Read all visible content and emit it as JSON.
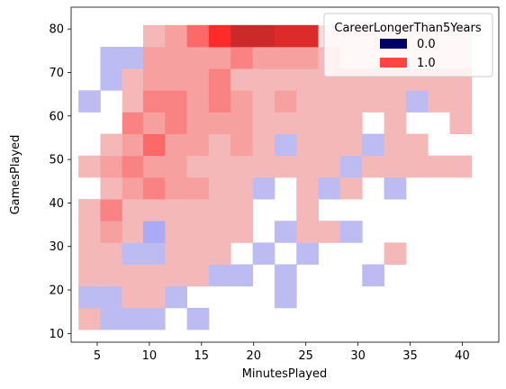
{
  "chart_data": {
    "type": "heatmap",
    "xlabel": "MinutesPlayed",
    "ylabel": "GamesPlayed",
    "xlim": [
      2.5,
      43.5
    ],
    "ylim": [
      8,
      85
    ],
    "xticks": [
      5,
      10,
      15,
      20,
      25,
      30,
      35,
      40
    ],
    "yticks": [
      10,
      20,
      30,
      40,
      50,
      60,
      70,
      80
    ],
    "legend": {
      "title": "CareerLongerThan5Years",
      "placement": "top-right",
      "entries": [
        {
          "label": "0.0",
          "color": "#000066"
        },
        {
          "label": "1.0",
          "color": "#ff4444"
        }
      ]
    },
    "bin_edges_x": [
      3.2,
      5.3,
      7.4,
      9.4,
      11.5,
      13.6,
      15.7,
      17.8,
      19.9,
      22.0,
      24.1,
      26.2,
      28.3,
      30.4,
      32.5,
      34.6,
      36.7,
      38.8,
      40.9
    ],
    "bin_edges_y": [
      10.9,
      15.9,
      20.9,
      25.9,
      30.9,
      35.9,
      40.9,
      45.9,
      50.9,
      55.9,
      60.9,
      65.9,
      70.9,
      75.9,
      80.9,
      85.0
    ],
    "colors": {
      "lightpink": "#f4b8b8",
      "pink": "#f6a0a0",
      "salmon": "#f98282",
      "red": "#fd6868",
      "brightred": "#ff2a2a",
      "darkred": "#cc2a2a",
      "crimson": "#dd2a2a",
      "lavender": "#bcbcf2",
      "blue": "#aaaaf6",
      "pale": "#fbdcdc"
    },
    "cells": [
      {
        "x": 0,
        "y": 0,
        "c": "lightpink"
      },
      {
        "x": 1,
        "y": 0,
        "c": "lavender"
      },
      {
        "x": 2,
        "y": 0,
        "c": "lavender"
      },
      {
        "x": 3,
        "y": 0,
        "c": "lavender"
      },
      {
        "x": 5,
        "y": 0,
        "c": "lavender"
      },
      {
        "x": 0,
        "y": 1,
        "c": "lavender"
      },
      {
        "x": 1,
        "y": 1,
        "c": "lavender"
      },
      {
        "x": 2,
        "y": 1,
        "c": "lightpink"
      },
      {
        "x": 3,
        "y": 1,
        "c": "lightpink"
      },
      {
        "x": 4,
        "y": 1,
        "c": "lavender"
      },
      {
        "x": 9,
        "y": 1,
        "c": "lavender"
      },
      {
        "x": 0,
        "y": 2,
        "c": "lightpink"
      },
      {
        "x": 1,
        "y": 2,
        "c": "lightpink"
      },
      {
        "x": 2,
        "y": 2,
        "c": "lightpink"
      },
      {
        "x": 3,
        "y": 2,
        "c": "lightpink"
      },
      {
        "x": 4,
        "y": 2,
        "c": "lightpink"
      },
      {
        "x": 5,
        "y": 2,
        "c": "lightpink"
      },
      {
        "x": 6,
        "y": 2,
        "c": "lavender"
      },
      {
        "x": 7,
        "y": 2,
        "c": "lavender"
      },
      {
        "x": 9,
        "y": 2,
        "c": "lavender"
      },
      {
        "x": 13,
        "y": 2,
        "c": "lavender"
      },
      {
        "x": 0,
        "y": 3,
        "c": "lightpink"
      },
      {
        "x": 1,
        "y": 3,
        "c": "lightpink"
      },
      {
        "x": 2,
        "y": 3,
        "c": "lavender"
      },
      {
        "x": 3,
        "y": 3,
        "c": "lavender"
      },
      {
        "x": 4,
        "y": 3,
        "c": "lightpink"
      },
      {
        "x": 5,
        "y": 3,
        "c": "lightpink"
      },
      {
        "x": 6,
        "y": 3,
        "c": "lightpink"
      },
      {
        "x": 8,
        "y": 3,
        "c": "lavender"
      },
      {
        "x": 10,
        "y": 3,
        "c": "lavender"
      },
      {
        "x": 14,
        "y": 3,
        "c": "lightpink"
      },
      {
        "x": 0,
        "y": 4,
        "c": "lightpink"
      },
      {
        "x": 1,
        "y": 4,
        "c": "pink"
      },
      {
        "x": 2,
        "y": 4,
        "c": "lightpink"
      },
      {
        "x": 3,
        "y": 4,
        "c": "blue"
      },
      {
        "x": 4,
        "y": 4,
        "c": "lightpink"
      },
      {
        "x": 5,
        "y": 4,
        "c": "lightpink"
      },
      {
        "x": 6,
        "y": 4,
        "c": "lightpink"
      },
      {
        "x": 7,
        "y": 4,
        "c": "lightpink"
      },
      {
        "x": 9,
        "y": 4,
        "c": "lavender"
      },
      {
        "x": 10,
        "y": 4,
        "c": "lightpink"
      },
      {
        "x": 11,
        "y": 4,
        "c": "lightpink"
      },
      {
        "x": 12,
        "y": 4,
        "c": "lavender"
      },
      {
        "x": 0,
        "y": 5,
        "c": "lightpink"
      },
      {
        "x": 1,
        "y": 5,
        "c": "salmon"
      },
      {
        "x": 2,
        "y": 5,
        "c": "lightpink"
      },
      {
        "x": 3,
        "y": 5,
        "c": "lightpink"
      },
      {
        "x": 4,
        "y": 5,
        "c": "lightpink"
      },
      {
        "x": 5,
        "y": 5,
        "c": "lightpink"
      },
      {
        "x": 6,
        "y": 5,
        "c": "lightpink"
      },
      {
        "x": 7,
        "y": 5,
        "c": "lightpink"
      },
      {
        "x": 10,
        "y": 5,
        "c": "lightpink"
      },
      {
        "x": 1,
        "y": 6,
        "c": "lightpink"
      },
      {
        "x": 2,
        "y": 6,
        "c": "pink"
      },
      {
        "x": 3,
        "y": 6,
        "c": "salmon"
      },
      {
        "x": 4,
        "y": 6,
        "c": "pink"
      },
      {
        "x": 5,
        "y": 6,
        "c": "pink"
      },
      {
        "x": 6,
        "y": 6,
        "c": "lightpink"
      },
      {
        "x": 7,
        "y": 6,
        "c": "lightpink"
      },
      {
        "x": 8,
        "y": 6,
        "c": "lavender"
      },
      {
        "x": 10,
        "y": 6,
        "c": "lightpink"
      },
      {
        "x": 11,
        "y": 6,
        "c": "lavender"
      },
      {
        "x": 12,
        "y": 6,
        "c": "lightpink"
      },
      {
        "x": 14,
        "y": 6,
        "c": "lavender"
      },
      {
        "x": 0,
        "y": 7,
        "c": "lightpink"
      },
      {
        "x": 1,
        "y": 7,
        "c": "pink"
      },
      {
        "x": 2,
        "y": 7,
        "c": "salmon"
      },
      {
        "x": 3,
        "y": 7,
        "c": "pink"
      },
      {
        "x": 4,
        "y": 7,
        "c": "pink"
      },
      {
        "x": 5,
        "y": 7,
        "c": "lightpink"
      },
      {
        "x": 6,
        "y": 7,
        "c": "lightpink"
      },
      {
        "x": 7,
        "y": 7,
        "c": "lightpink"
      },
      {
        "x": 8,
        "y": 7,
        "c": "lightpink"
      },
      {
        "x": 9,
        "y": 7,
        "c": "lightpink"
      },
      {
        "x": 10,
        "y": 7,
        "c": "lightpink"
      },
      {
        "x": 11,
        "y": 7,
        "c": "lightpink"
      },
      {
        "x": 12,
        "y": 7,
        "c": "lavender"
      },
      {
        "x": 13,
        "y": 7,
        "c": "lightpink"
      },
      {
        "x": 14,
        "y": 7,
        "c": "lightpink"
      },
      {
        "x": 15,
        "y": 7,
        "c": "lightpink"
      },
      {
        "x": 16,
        "y": 7,
        "c": "lightpink"
      },
      {
        "x": 17,
        "y": 7,
        "c": "lightpink"
      },
      {
        "x": 1,
        "y": 8,
        "c": "lightpink"
      },
      {
        "x": 2,
        "y": 8,
        "c": "pink"
      },
      {
        "x": 3,
        "y": 8,
        "c": "red"
      },
      {
        "x": 4,
        "y": 8,
        "c": "pink"
      },
      {
        "x": 5,
        "y": 8,
        "c": "pink"
      },
      {
        "x": 6,
        "y": 8,
        "c": "lightpink"
      },
      {
        "x": 7,
        "y": 8,
        "c": "pink"
      },
      {
        "x": 8,
        "y": 8,
        "c": "lightpink"
      },
      {
        "x": 9,
        "y": 8,
        "c": "lavender"
      },
      {
        "x": 10,
        "y": 8,
        "c": "lightpink"
      },
      {
        "x": 11,
        "y": 8,
        "c": "lightpink"
      },
      {
        "x": 12,
        "y": 8,
        "c": "lightpink"
      },
      {
        "x": 13,
        "y": 8,
        "c": "lavender"
      },
      {
        "x": 14,
        "y": 8,
        "c": "lightpink"
      },
      {
        "x": 15,
        "y": 8,
        "c": "lightpink"
      },
      {
        "x": 2,
        "y": 9,
        "c": "salmon"
      },
      {
        "x": 3,
        "y": 9,
        "c": "pink"
      },
      {
        "x": 4,
        "y": 9,
        "c": "salmon"
      },
      {
        "x": 5,
        "y": 9,
        "c": "pink"
      },
      {
        "x": 6,
        "y": 9,
        "c": "pink"
      },
      {
        "x": 7,
        "y": 9,
        "c": "pink"
      },
      {
        "x": 8,
        "y": 9,
        "c": "lightpink"
      },
      {
        "x": 9,
        "y": 9,
        "c": "lightpink"
      },
      {
        "x": 10,
        "y": 9,
        "c": "lightpink"
      },
      {
        "x": 11,
        "y": 9,
        "c": "lightpink"
      },
      {
        "x": 12,
        "y": 9,
        "c": "lightpink"
      },
      {
        "x": 14,
        "y": 9,
        "c": "lightpink"
      },
      {
        "x": 17,
        "y": 9,
        "c": "lightpink"
      },
      {
        "x": 0,
        "y": 10,
        "c": "lavender"
      },
      {
        "x": 2,
        "y": 10,
        "c": "lightpink"
      },
      {
        "x": 3,
        "y": 10,
        "c": "salmon"
      },
      {
        "x": 4,
        "y": 10,
        "c": "salmon"
      },
      {
        "x": 5,
        "y": 10,
        "c": "pink"
      },
      {
        "x": 6,
        "y": 10,
        "c": "salmon"
      },
      {
        "x": 7,
        "y": 10,
        "c": "pink"
      },
      {
        "x": 8,
        "y": 10,
        "c": "lightpink"
      },
      {
        "x": 9,
        "y": 10,
        "c": "pink"
      },
      {
        "x": 10,
        "y": 10,
        "c": "lightpink"
      },
      {
        "x": 11,
        "y": 10,
        "c": "lightpink"
      },
      {
        "x": 12,
        "y": 10,
        "c": "lightpink"
      },
      {
        "x": 13,
        "y": 10,
        "c": "lightpink"
      },
      {
        "x": 14,
        "y": 10,
        "c": "lightpink"
      },
      {
        "x": 15,
        "y": 10,
        "c": "lavender"
      },
      {
        "x": 16,
        "y": 10,
        "c": "lightpink"
      },
      {
        "x": 17,
        "y": 10,
        "c": "lightpink"
      },
      {
        "x": 1,
        "y": 11,
        "c": "lavender"
      },
      {
        "x": 2,
        "y": 11,
        "c": "lightpink"
      },
      {
        "x": 3,
        "y": 11,
        "c": "pink"
      },
      {
        "x": 4,
        "y": 11,
        "c": "pink"
      },
      {
        "x": 5,
        "y": 11,
        "c": "pink"
      },
      {
        "x": 6,
        "y": 11,
        "c": "salmon"
      },
      {
        "x": 7,
        "y": 11,
        "c": "lightpink"
      },
      {
        "x": 8,
        "y": 11,
        "c": "lightpink"
      },
      {
        "x": 9,
        "y": 11,
        "c": "lightpink"
      },
      {
        "x": 10,
        "y": 11,
        "c": "lightpink"
      },
      {
        "x": 11,
        "y": 11,
        "c": "lightpink"
      },
      {
        "x": 12,
        "y": 11,
        "c": "lightpink"
      },
      {
        "x": 13,
        "y": 11,
        "c": "lightpink"
      },
      {
        "x": 14,
        "y": 11,
        "c": "lightpink"
      },
      {
        "x": 15,
        "y": 11,
        "c": "lightpink"
      },
      {
        "x": 16,
        "y": 11,
        "c": "lightpink"
      },
      {
        "x": 17,
        "y": 11,
        "c": "lightpink"
      },
      {
        "x": 18,
        "y": 11,
        "c": "lightpink"
      },
      {
        "x": 1,
        "y": 12,
        "c": "lavender"
      },
      {
        "x": 2,
        "y": 12,
        "c": "lavender"
      },
      {
        "x": 3,
        "y": 12,
        "c": "pink"
      },
      {
        "x": 4,
        "y": 12,
        "c": "pink"
      },
      {
        "x": 5,
        "y": 12,
        "c": "pink"
      },
      {
        "x": 6,
        "y": 12,
        "c": "pink"
      },
      {
        "x": 7,
        "y": 12,
        "c": "salmon"
      },
      {
        "x": 8,
        "y": 12,
        "c": "pink"
      },
      {
        "x": 9,
        "y": 12,
        "c": "pink"
      },
      {
        "x": 10,
        "y": 12,
        "c": "pink"
      },
      {
        "x": 11,
        "y": 12,
        "c": "lightpink"
      },
      {
        "x": 12,
        "y": 12,
        "c": "pale"
      },
      {
        "x": 13,
        "y": 12,
        "c": "pale"
      },
      {
        "x": 14,
        "y": 12,
        "c": "pale"
      },
      {
        "x": 15,
        "y": 12,
        "c": "pale"
      },
      {
        "x": 16,
        "y": 12,
        "c": "pale"
      },
      {
        "x": 17,
        "y": 12,
        "c": "pale"
      },
      {
        "x": 18,
        "y": 12,
        "c": "pale"
      },
      {
        "x": 3,
        "y": 13,
        "c": "lightpink"
      },
      {
        "x": 4,
        "y": 13,
        "c": "pink"
      },
      {
        "x": 5,
        "y": 13,
        "c": "red"
      },
      {
        "x": 6,
        "y": 13,
        "c": "brightred"
      },
      {
        "x": 7,
        "y": 13,
        "c": "darkred"
      },
      {
        "x": 8,
        "y": 13,
        "c": "darkred"
      },
      {
        "x": 9,
        "y": 13,
        "c": "crimson"
      },
      {
        "x": 10,
        "y": 13,
        "c": "crimson"
      },
      {
        "x": 11,
        "y": 13,
        "c": "pale"
      },
      {
        "x": 12,
        "y": 13,
        "c": "pale"
      },
      {
        "x": 13,
        "y": 13,
        "c": "pale"
      },
      {
        "x": 14,
        "y": 13,
        "c": "pale"
      },
      {
        "x": 15,
        "y": 13,
        "c": "pale"
      },
      {
        "x": 16,
        "y": 13,
        "c": "pale"
      },
      {
        "x": 17,
        "y": 13,
        "c": "pale"
      }
    ]
  }
}
